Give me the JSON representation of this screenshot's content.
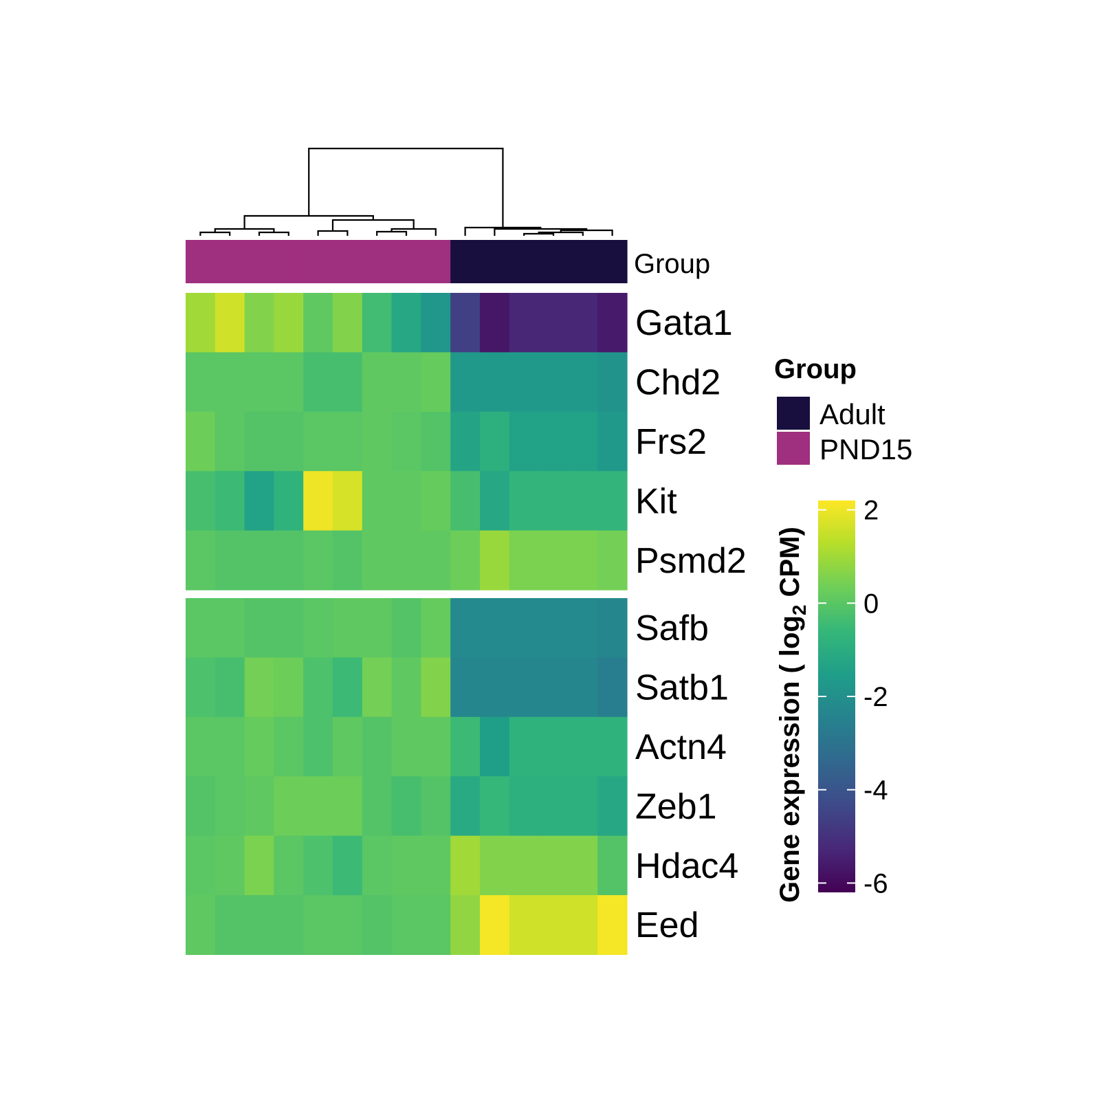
{
  "chart_data": {
    "type": "heatmap",
    "title": "",
    "column_annotation": {
      "label": "Group",
      "values": [
        "PND15",
        "PND15",
        "PND15",
        "PND15",
        "PND15",
        "PND15",
        "PND15",
        "PND15",
        "PND15",
        "Adult",
        "Adult",
        "Adult",
        "Adult",
        "Adult",
        "Adult"
      ]
    },
    "row_groups": [
      [
        "Gata1",
        "Chd2",
        "Frs2",
        "Kit",
        "Psmd2"
      ],
      [
        "Safb",
        "Satb1",
        "Actn4",
        "Zeb1",
        "Hdac4",
        "Eed"
      ]
    ],
    "rows": [
      "Gata1",
      "Chd2",
      "Frs2",
      "Kit",
      "Psmd2",
      "Safb",
      "Satb1",
      "Actn4",
      "Zeb1",
      "Hdac4",
      "Eed"
    ],
    "values": [
      [
        1.0,
        1.6,
        0.6,
        0.9,
        0.1,
        0.6,
        -0.4,
        -1.2,
        -1.8,
        -4.6,
        -5.7,
        -5.3,
        -5.3,
        -5.3,
        -5.6
      ],
      [
        0.0,
        0.0,
        0.0,
        0.0,
        -0.3,
        -0.3,
        0.1,
        0.1,
        0.2,
        -1.7,
        -1.7,
        -1.7,
        -1.7,
        -1.7,
        -1.9
      ],
      [
        0.3,
        0.0,
        -0.1,
        -0.1,
        0.0,
        0.0,
        0.1,
        0.0,
        -0.1,
        -1.3,
        -0.9,
        -1.4,
        -1.4,
        -1.4,
        -1.7
      ],
      [
        -0.3,
        -0.5,
        -1.4,
        -0.8,
        2.0,
        1.7,
        0.1,
        0.1,
        0.2,
        -0.3,
        -1.2,
        -0.7,
        -0.7,
        -0.7,
        -0.7
      ],
      [
        0.0,
        -0.1,
        -0.1,
        -0.1,
        0.0,
        -0.1,
        0.1,
        0.1,
        0.1,
        0.3,
        0.9,
        0.5,
        0.5,
        0.5,
        0.4
      ],
      [
        0.0,
        0.0,
        -0.1,
        -0.1,
        0.0,
        0.1,
        0.1,
        -0.1,
        0.2,
        -2.2,
        -2.2,
        -2.2,
        -2.2,
        -2.2,
        -2.3
      ],
      [
        -0.2,
        -0.3,
        0.4,
        0.3,
        -0.2,
        -0.5,
        0.4,
        0.1,
        0.6,
        -2.3,
        -2.3,
        -2.3,
        -2.3,
        -2.3,
        -2.6
      ],
      [
        0.0,
        0.0,
        0.2,
        0.0,
        -0.2,
        0.1,
        -0.1,
        0.1,
        0.1,
        -0.5,
        -1.5,
        -0.8,
        -0.8,
        -0.8,
        -0.8
      ],
      [
        -0.1,
        0.0,
        0.1,
        0.3,
        0.3,
        0.3,
        -0.1,
        -0.3,
        -0.1,
        -1.1,
        -0.6,
        -0.9,
        -0.9,
        -0.9,
        -1.2
      ],
      [
        0.0,
        0.1,
        0.5,
        0.0,
        -0.2,
        -0.5,
        0.0,
        0.1,
        0.1,
        1.0,
        0.6,
        0.6,
        0.6,
        0.6,
        -0.1
      ],
      [
        0.1,
        -0.1,
        -0.1,
        -0.1,
        0.0,
        0.0,
        -0.1,
        0.0,
        0.0,
        0.8,
        2.1,
        1.6,
        1.6,
        1.6,
        2.1
      ]
    ],
    "legend": {
      "group": {
        "title": "Group",
        "items": [
          {
            "name": "Adult",
            "color": "#180f3e"
          },
          {
            "name": "PND15",
            "color": "#9f2f7f"
          }
        ]
      },
      "colorbar": {
        "title_main": "Gene expression ( log",
        "title_sub": "2",
        "title_end": " CPM)",
        "range": [
          -6.2,
          2.2
        ],
        "ticks": [
          2,
          0,
          -2,
          -4,
          -6
        ],
        "tick_labels": [
          "2",
          "0",
          "-2",
          "-4",
          "-6"
        ],
        "palette": "viridis"
      },
      "placement": "right"
    },
    "dendrogram": {
      "position": "top",
      "clusters": [
        [
          "PND15"
        ],
        [
          "Adult"
        ]
      ]
    }
  }
}
